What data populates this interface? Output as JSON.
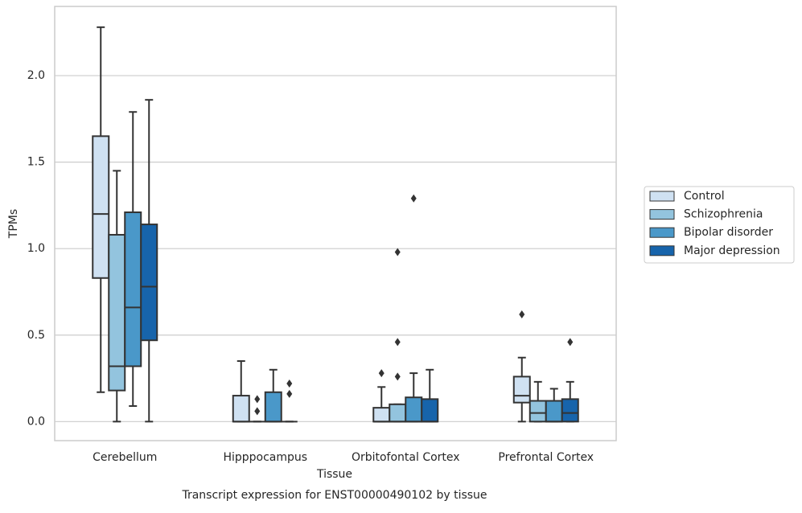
{
  "chart_data": {
    "type": "box",
    "xlabel": "Tissue",
    "ylabel": "TPMs",
    "caption": "Transcript expression for ENST00000490102 by tissue",
    "categories": [
      "Cerebellum",
      "Hipppocampus",
      "Orbitofontal Cortex",
      "Prefrontal Cortex"
    ],
    "ylim": [
      -0.11,
      2.4
    ],
    "yticks": [
      {
        "value": 0,
        "label": "0.0"
      },
      0.5,
      {
        "value": 1,
        "label": "1.0"
      },
      1.5,
      {
        "value": 2,
        "label": "2.0"
      }
    ],
    "grid": true,
    "legend": "right",
    "series": [
      {
        "name": "Control",
        "color": "#cfe1f2",
        "boxes": [
          {
            "low": 0.17,
            "q1": 0.83,
            "median": 1.2,
            "q3": 1.65,
            "high": 2.28,
            "outliers": []
          },
          {
            "low": 0,
            "q1": 0,
            "median": 0,
            "q3": 0.15,
            "high": 0.35,
            "outliers": []
          },
          {
            "low": 0,
            "q1": 0,
            "median": 0,
            "q3": 0.08,
            "high": 0.2,
            "outliers": [
              0.28
            ]
          },
          {
            "low": 0,
            "q1": 0.11,
            "median": 0.15,
            "q3": 0.26,
            "high": 0.37,
            "outliers": [
              0.62
            ]
          }
        ]
      },
      {
        "name": "Schizophrenia",
        "color": "#93c4de",
        "boxes": [
          {
            "low": 0,
            "q1": 0.18,
            "median": 0.32,
            "q3": 1.08,
            "high": 1.45,
            "outliers": []
          },
          {
            "low": 0,
            "q1": 0,
            "median": 0,
            "q3": 0,
            "high": 0,
            "outliers": [
              0.13,
              0.06
            ]
          },
          {
            "low": 0,
            "q1": 0,
            "median": 0,
            "q3": 0.1,
            "high": 0.1,
            "outliers": [
              0.98,
              0.46,
              0.26
            ]
          },
          {
            "low": 0,
            "q1": 0,
            "median": 0.05,
            "q3": 0.12,
            "high": 0.23,
            "outliers": []
          }
        ]
      },
      {
        "name": "Bipolar disorder",
        "color": "#4a98c9",
        "boxes": [
          {
            "low": 0.09,
            "q1": 0.32,
            "median": 0.66,
            "q3": 1.21,
            "high": 1.79,
            "outliers": []
          },
          {
            "low": 0,
            "q1": 0,
            "median": 0,
            "q3": 0.17,
            "high": 0.3,
            "outliers": []
          },
          {
            "low": 0,
            "q1": 0,
            "median": 0,
            "q3": 0.14,
            "high": 0.28,
            "outliers": [
              1.29
            ]
          },
          {
            "low": 0,
            "q1": 0,
            "median": 0,
            "q3": 0.12,
            "high": 0.19,
            "outliers": []
          }
        ]
      },
      {
        "name": "Major depression",
        "color": "#1764ab",
        "boxes": [
          {
            "low": 0,
            "q1": 0.47,
            "median": 0.78,
            "q3": 1.14,
            "high": 1.86,
            "outliers": []
          },
          {
            "low": 0,
            "q1": 0,
            "median": 0,
            "q3": 0,
            "high": 0,
            "outliers": [
              0.22,
              0.16
            ]
          },
          {
            "low": 0,
            "q1": 0,
            "median": 0,
            "q3": 0.13,
            "high": 0.3,
            "outliers": []
          },
          {
            "low": 0,
            "q1": 0,
            "median": 0.05,
            "q3": 0.13,
            "high": 0.23,
            "outliers": [
              0.46
            ]
          }
        ]
      }
    ]
  }
}
